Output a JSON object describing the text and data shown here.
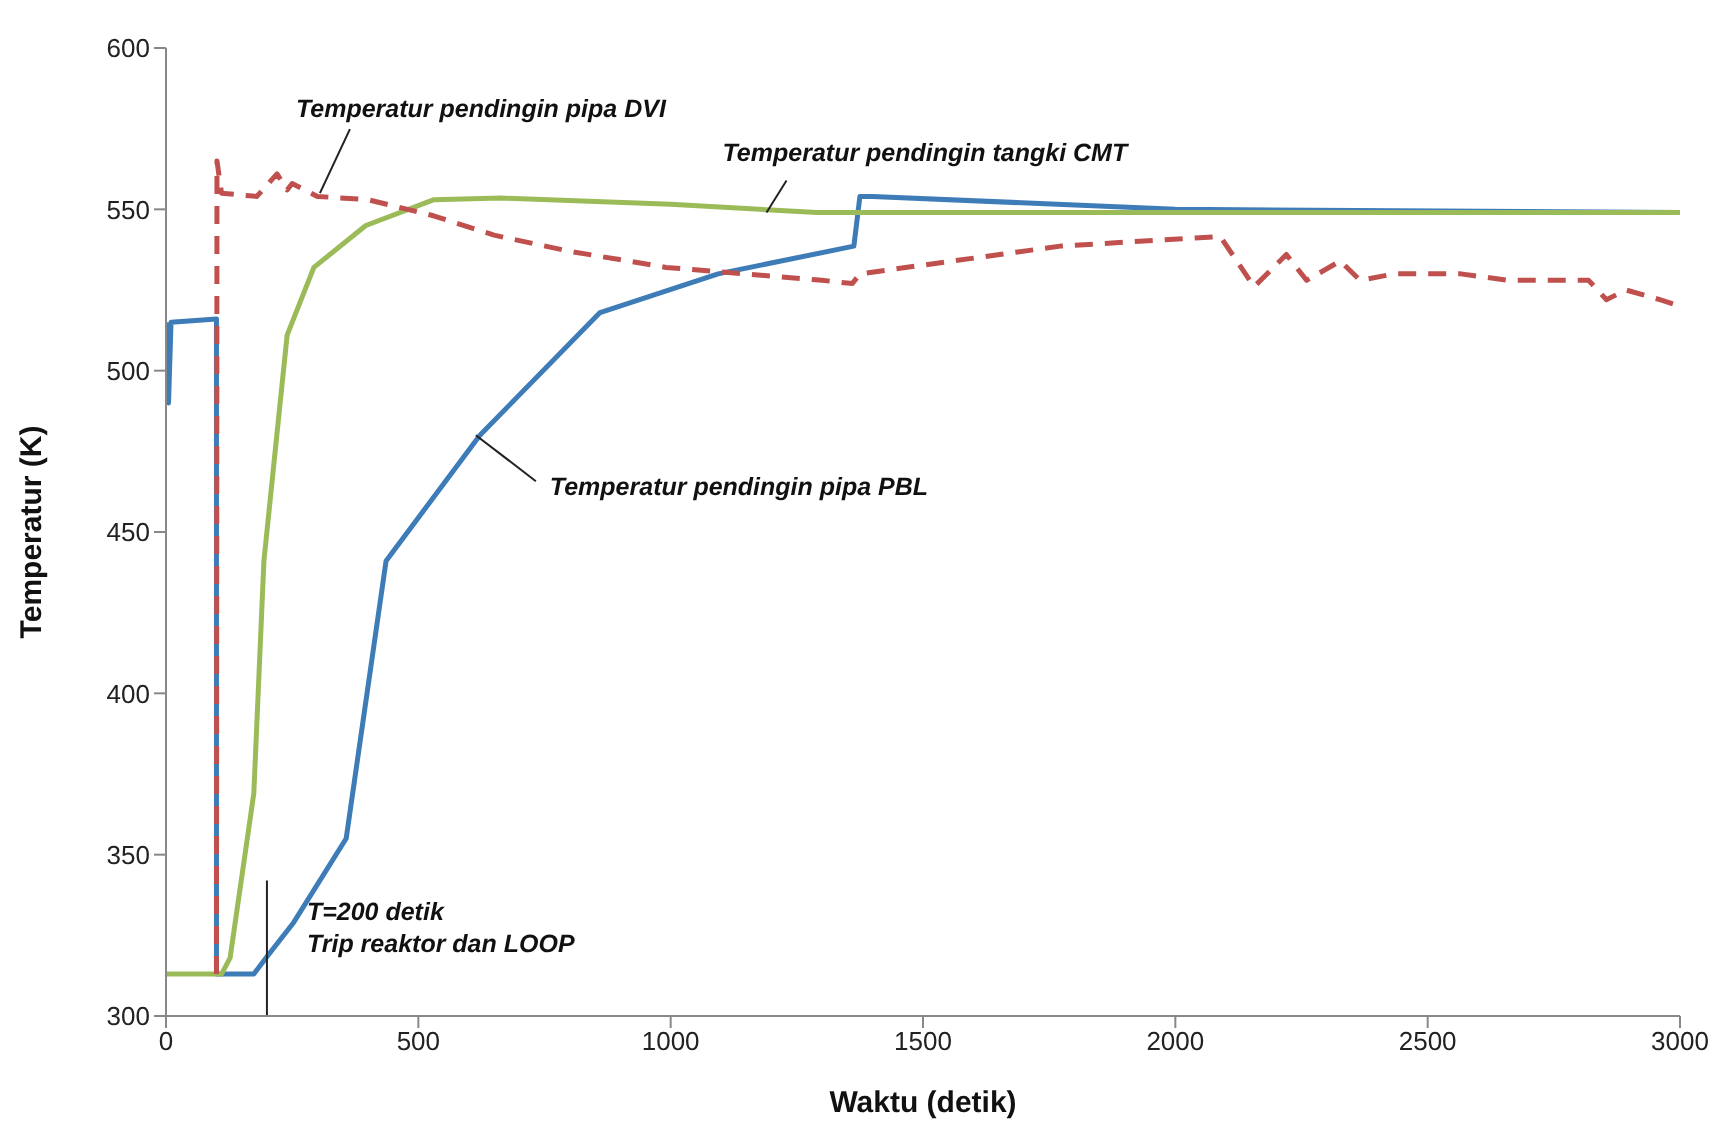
{
  "chart_data": {
    "type": "line",
    "xlabel": "Waktu (detik)",
    "ylabel": "Temperatur (K)",
    "xlim": [
      0,
      3000
    ],
    "xticks": [
      0,
      500,
      1000,
      1500,
      2000,
      2500,
      3000
    ],
    "ylim": [
      300,
      600
    ],
    "yticks": [
      300,
      350,
      400,
      450,
      500,
      550,
      600
    ],
    "grid": false,
    "marker": "none",
    "series": [
      {
        "color": "#3e7cb8",
        "line_style": "solid",
        "x": [
          0,
          5,
          10,
          100,
          100,
          174,
          198,
          253,
          357,
          436,
          622,
          860,
          1094,
          1363,
          1375,
          1400,
          2000,
          3000
        ],
        "values": [
          515,
          490,
          515,
          516,
          313,
          313,
          318,
          329,
          355,
          441,
          480,
          518,
          530,
          538.6,
          554,
          554,
          550,
          549
        ]
      },
      {
        "color": "#9bbb59",
        "line_style": "solid",
        "x": [
          0,
          110,
          127,
          174,
          194,
          213,
          240,
          293,
          396,
          531,
          663,
          1000,
          1290,
          3000
        ],
        "values": [
          313,
          313,
          318,
          369,
          441,
          470,
          511,
          532,
          545,
          553,
          553.5,
          551.6,
          549,
          549
        ]
      },
      {
        "color": "#c0504d",
        "line_style": "dashed",
        "x": [
          100,
          101,
          110,
          180,
          220,
          240,
          250,
          300,
          400,
          530,
          650,
          800,
          991,
          1300,
          1360,
          1375,
          1772,
          2089,
          2156,
          2220,
          2260,
          2327,
          2366,
          2434,
          2566,
          2660,
          2766,
          2819,
          2854,
          2893,
          2960,
          3000
        ],
        "values": [
          313,
          565,
          555,
          554,
          561,
          556,
          558,
          554,
          553,
          548,
          542,
          537,
          532,
          528,
          527,
          530,
          538.6,
          541.6,
          526,
          536,
          528,
          534,
          528,
          530,
          530,
          528,
          528,
          528,
          522,
          525,
          522,
          520
        ]
      }
    ],
    "annotations": [
      {
        "text": "Temperatur pendingin pipa DVI",
        "x": 305,
        "y": 555
      },
      {
        "text": "Temperatur pendingin tangki CMT",
        "x": 1190,
        "y": 549
      },
      {
        "text": "Temperatur pendingin pipa PBL",
        "x": 614,
        "y": 480
      }
    ],
    "ref_lines": [
      {
        "axis": "x",
        "value": 200,
        "label": "T=200 detik\nTrip reaktor dan LOOP",
        "color": "#222222"
      }
    ]
  }
}
